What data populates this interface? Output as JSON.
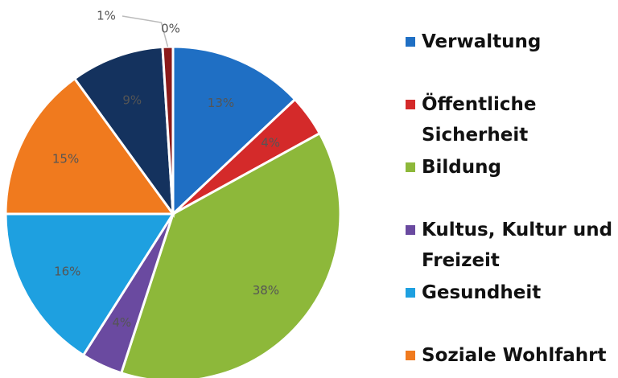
{
  "chart_data": {
    "type": "pie",
    "series": [
      {
        "categories": [
          "Verwaltung",
          "Öffentliche Sicherheit",
          "Bildung",
          "Kultus, Kultur und Freizeit",
          "Gesundheit",
          "Soziale Wohlfahrt",
          null,
          null,
          null
        ],
        "values": [
          13,
          4,
          38,
          4,
          16,
          15,
          9,
          1,
          0
        ],
        "value_labels": [
          "13%",
          "4%",
          "38%",
          "4%",
          "16%",
          "15%",
          "9%",
          "1%",
          "0%"
        ],
        "colors": [
          "#1f6fc4",
          "#d42a2a",
          "#8db83a",
          "#6a4aa0",
          "#1ea0e0",
          "#f07a1e",
          "#14325e",
          "#8b1a1a",
          "#4a7a2a"
        ]
      }
    ]
  }
}
